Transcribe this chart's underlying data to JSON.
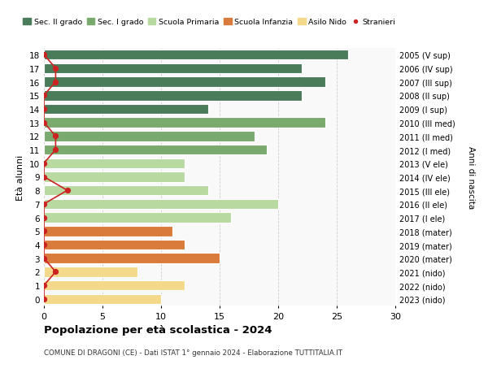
{
  "ages": [
    18,
    17,
    16,
    15,
    14,
    13,
    12,
    11,
    10,
    9,
    8,
    7,
    6,
    5,
    4,
    3,
    2,
    1,
    0
  ],
  "right_labels": [
    "2005 (V sup)",
    "2006 (IV sup)",
    "2007 (III sup)",
    "2008 (II sup)",
    "2009 (I sup)",
    "2010 (III med)",
    "2011 (II med)",
    "2012 (I med)",
    "2013 (V ele)",
    "2014 (IV ele)",
    "2015 (III ele)",
    "2016 (II ele)",
    "2017 (I ele)",
    "2018 (mater)",
    "2019 (mater)",
    "2020 (mater)",
    "2021 (nido)",
    "2022 (nido)",
    "2023 (nido)"
  ],
  "bar_values": [
    26,
    22,
    24,
    22,
    14,
    24,
    18,
    19,
    12,
    12,
    14,
    20,
    16,
    11,
    12,
    15,
    8,
    12,
    10
  ],
  "bar_colors": [
    "#4a7c59",
    "#4a7c59",
    "#4a7c59",
    "#4a7c59",
    "#4a7c59",
    "#7aaa6e",
    "#7aaa6e",
    "#7aaa6e",
    "#b8d9a0",
    "#b8d9a0",
    "#b8d9a0",
    "#b8d9a0",
    "#b8d9a0",
    "#d97b3a",
    "#d97b3a",
    "#d97b3a",
    "#f5d98b",
    "#f5d98b",
    "#f5d98b"
  ],
  "stranieri_x": [
    0,
    1,
    1,
    0,
    0,
    0,
    1,
    1,
    0,
    0,
    2,
    0,
    0,
    0,
    0,
    0,
    1,
    0,
    0
  ],
  "stranieri_color": "#cc2222",
  "legend_labels": [
    "Sec. II grado",
    "Sec. I grado",
    "Scuola Primaria",
    "Scuola Infanzia",
    "Asilo Nido",
    "Stranieri"
  ],
  "legend_colors": [
    "#4a7c59",
    "#7aaa6e",
    "#b8d9a0",
    "#d97b3a",
    "#f5d98b",
    "#cc2222"
  ],
  "ylabel": "Età alunni",
  "right_ylabel": "Anni di nascita",
  "title": "Popolazione per età scolastica - 2024",
  "subtitle": "COMUNE DI DRAGONI (CE) - Dati ISTAT 1° gennaio 2024 - Elaborazione TUTTITALIA.IT",
  "xlim": [
    0,
    30
  ],
  "background_color": "#f9f9f9"
}
